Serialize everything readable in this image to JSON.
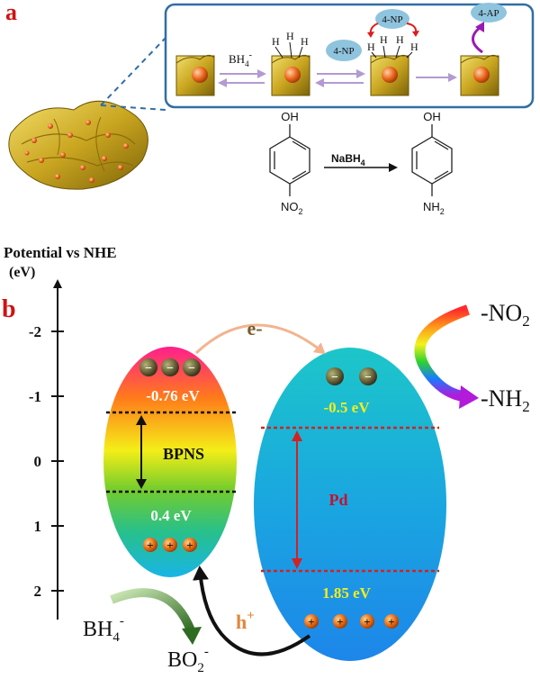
{
  "panel_a": {
    "label": "a",
    "inset": {
      "bh4": "BH",
      "bh4_sub": "4",
      "bh4_sup": "-",
      "h": "H",
      "np_bubble": "4-NP",
      "np_bubble_top": "4-NP",
      "ap_bubble": "4-AP"
    },
    "reaction": {
      "oh_left": "OH",
      "no2": "NO",
      "no2_sub": "2",
      "reagent": "NaBH",
      "reagent_sub": "4",
      "oh_right": "OH",
      "nh2": "NH",
      "nh2_sub": "2"
    }
  },
  "panel_b": {
    "label": "b",
    "axis_title": "Potential vs NHE",
    "axis_unit": "(eV)",
    "ticks": [
      "-2",
      "-1",
      "0",
      "1",
      "2"
    ],
    "electron_label": "e-",
    "hole_label": "h",
    "hole_sup": "+",
    "bpns": {
      "name": "BPNS",
      "cb": "-0.76 eV",
      "vb": "0.4 eV",
      "minus": "−",
      "plus": "+"
    },
    "pd": {
      "name": "Pd",
      "top": "-0.5 eV",
      "bottom": "1.85 eV"
    },
    "no2_label": "-NO",
    "no2_sub": "2",
    "nh2_label": "-NH",
    "nh2_sub": "2",
    "bh4_label": "BH",
    "bh4_sub": "4",
    "bh4_sup": "-",
    "bo2_label": "BO",
    "bo2_sub": "2",
    "bo2_sup": "-"
  },
  "colors": {
    "label_red": "#d11111",
    "frame_blue": "#2f6ea6",
    "bubble": "#8fc4de",
    "cb_text": "#ffffff",
    "pd_value": "#f2ee1c",
    "pd_name": "#c8102e",
    "dotted_red": "#d22222",
    "electron_arrow": "#f2b48f",
    "hole_label": "#e0873a"
  }
}
